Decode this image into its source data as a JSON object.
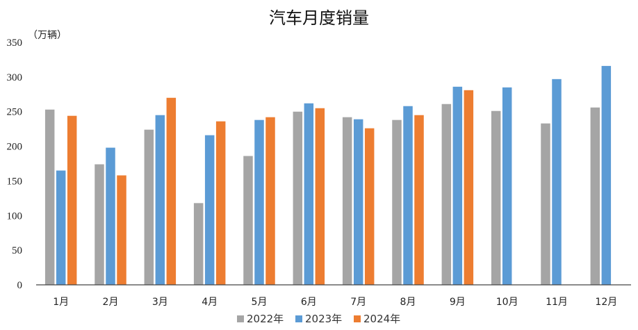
{
  "chart_data": {
    "type": "bar",
    "title": "汽车月度销量",
    "ylabel": "（万辆）",
    "xlabel": "",
    "ylim": [
      0,
      350
    ],
    "yticks": [
      0,
      50,
      100,
      150,
      200,
      250,
      300,
      350
    ],
    "grid": false,
    "legend_position": "bottom",
    "categories": [
      "1月",
      "2月",
      "3月",
      "4月",
      "5月",
      "6月",
      "7月",
      "8月",
      "9月",
      "10月",
      "11月",
      "12月"
    ],
    "series": [
      {
        "name": "2022年",
        "color": "#A5A5A5",
        "values": [
          253,
          174,
          224,
          118,
          186,
          250,
          242,
          238,
          261,
          251,
          233,
          256
        ]
      },
      {
        "name": "2023年",
        "color": "#5B9BD5",
        "values": [
          165,
          198,
          245,
          216,
          238,
          262,
          239,
          258,
          286,
          285,
          297,
          316
        ]
      },
      {
        "name": "2024年",
        "color": "#ED7D31",
        "values": [
          244,
          158,
          270,
          236,
          242,
          255,
          226,
          245,
          281,
          null,
          null,
          null
        ]
      }
    ]
  }
}
